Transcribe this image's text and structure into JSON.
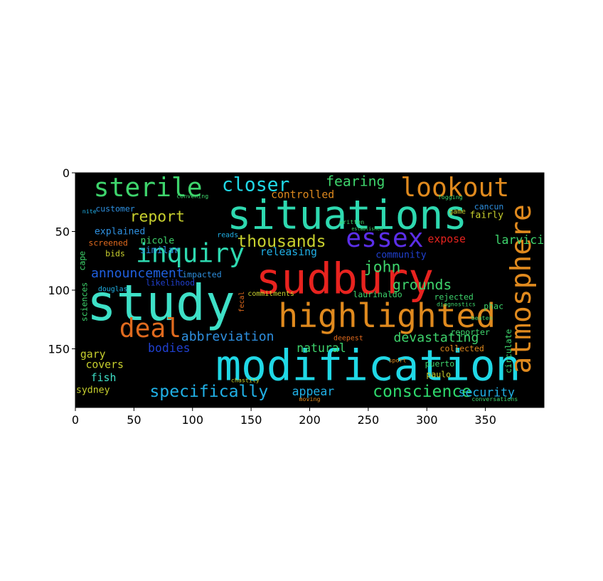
{
  "chart_data": {
    "type": "image",
    "content": "word cloud",
    "background": "#000000",
    "xlim": [
      0,
      400
    ],
    "ylim": [
      200,
      0
    ],
    "x_ticks": [
      "0",
      "50",
      "100",
      "150",
      "200",
      "250",
      "300",
      "350"
    ],
    "y_ticks": [
      "0",
      "50",
      "100",
      "150"
    ],
    "words": [
      {
        "text": "sudbury",
        "x": 230,
        "y": 93,
        "size": 36,
        "color": "#e8231f",
        "rotate": 0
      },
      {
        "text": "situations",
        "x": 232,
        "y": 38,
        "size": 34,
        "color": "#2ed9b0",
        "rotate": 0
      },
      {
        "text": "modification",
        "x": 250,
        "y": 167,
        "size": 36,
        "color": "#20d8e6",
        "rotate": 0
      },
      {
        "text": "study",
        "x": 73,
        "y": 114,
        "size": 42,
        "color": "#3ee0c7",
        "rotate": 0
      },
      {
        "text": "highlighted",
        "x": 266,
        "y": 124,
        "size": 28,
        "color": "#e08a1e",
        "rotate": 0
      },
      {
        "text": "atmosphere",
        "x": 382,
        "y": 99,
        "size": 24,
        "color": "#e08a1e",
        "rotate": -90
      },
      {
        "text": "inquiry",
        "x": 98,
        "y": 70,
        "size": 22,
        "color": "#2ed9b0",
        "rotate": 0
      },
      {
        "text": "sterile",
        "x": 62,
        "y": 14,
        "size": 22,
        "color": "#3ed46c",
        "rotate": 0
      },
      {
        "text": "lookout",
        "x": 324,
        "y": 14,
        "size": 22,
        "color": "#e08a1e",
        "rotate": 0
      },
      {
        "text": "essex",
        "x": 264,
        "y": 57,
        "size": 22,
        "color": "#5b2ee8",
        "rotate": 0
      },
      {
        "text": "deal",
        "x": 64,
        "y": 134,
        "size": 22,
        "color": "#e06a1e",
        "rotate": 0
      },
      {
        "text": "closer",
        "x": 154,
        "y": 11,
        "size": 16,
        "color": "#20d8e6",
        "rotate": 0
      },
      {
        "text": "thousands",
        "x": 176,
        "y": 59,
        "size": 14,
        "color": "#c8d02e",
        "rotate": 0
      },
      {
        "text": "report",
        "x": 70,
        "y": 38,
        "size": 13,
        "color": "#c8d02e",
        "rotate": 0
      },
      {
        "text": "conscience",
        "x": 296,
        "y": 187,
        "size": 14,
        "color": "#2ed96c",
        "rotate": 0
      },
      {
        "text": "specifically",
        "x": 114,
        "y": 187,
        "size": 14,
        "color": "#20b0e6",
        "rotate": 0
      },
      {
        "text": "announcement",
        "x": 53,
        "y": 86,
        "size": 11,
        "color": "#2060e0",
        "rotate": 0
      },
      {
        "text": "abbreviation",
        "x": 130,
        "y": 140,
        "size": 11,
        "color": "#2e90e0",
        "rotate": 0
      },
      {
        "text": "fearing",
        "x": 239,
        "y": 8,
        "size": 12,
        "color": "#3ed46c",
        "rotate": 0
      },
      {
        "text": "john",
        "x": 262,
        "y": 81,
        "size": 13,
        "color": "#3ed46c",
        "rotate": 0
      },
      {
        "text": "grounds",
        "x": 296,
        "y": 96,
        "size": 12,
        "color": "#3ed46c",
        "rotate": 0
      },
      {
        "text": "devastating",
        "x": 308,
        "y": 141,
        "size": 11,
        "color": "#3ed46c",
        "rotate": 0
      },
      {
        "text": "bodies",
        "x": 80,
        "y": 150,
        "size": 10,
        "color": "#2040d0",
        "rotate": 0
      },
      {
        "text": "natural",
        "x": 210,
        "y": 150,
        "size": 10,
        "color": "#3ed46c",
        "rotate": 0
      },
      {
        "text": "appear",
        "x": 203,
        "y": 187,
        "size": 10,
        "color": "#20b0e6",
        "rotate": 0
      },
      {
        "text": "security",
        "x": 351,
        "y": 188,
        "size": 10,
        "color": "#20b0e6",
        "rotate": 0
      },
      {
        "text": "expose",
        "x": 317,
        "y": 57,
        "size": 9,
        "color": "#e8231f",
        "rotate": 0
      },
      {
        "text": "controlled",
        "x": 194,
        "y": 19,
        "size": 9,
        "color": "#e08a1e",
        "rotate": 0
      },
      {
        "text": "releasing",
        "x": 182,
        "y": 68,
        "size": 9,
        "color": "#20b0e6",
        "rotate": 0
      },
      {
        "text": "community",
        "x": 278,
        "y": 70,
        "size": 8,
        "color": "#2040d0",
        "rotate": 0
      },
      {
        "text": "explained",
        "x": 38,
        "y": 50,
        "size": 8,
        "color": "#2e90e0",
        "rotate": 0
      },
      {
        "text": "nicole",
        "x": 70,
        "y": 58,
        "size": 8,
        "color": "#3ed46c",
        "rotate": 0
      },
      {
        "text": "similar",
        "x": 72,
        "y": 66,
        "size": 8,
        "color": "#2e90e0",
        "rotate": 0
      },
      {
        "text": "customer",
        "x": 34,
        "y": 31,
        "size": 7,
        "color": "#2e90e0",
        "rotate": 0
      },
      {
        "text": "screened",
        "x": 28,
        "y": 60,
        "size": 7,
        "color": "#e06a1e",
        "rotate": 0
      },
      {
        "text": "bids",
        "x": 34,
        "y": 69,
        "size": 7,
        "color": "#c8d02e",
        "rotate": 0
      },
      {
        "text": "likelihood",
        "x": 81,
        "y": 94,
        "size": 7,
        "color": "#2040d0",
        "rotate": 0
      },
      {
        "text": "impacted",
        "x": 108,
        "y": 87,
        "size": 7,
        "color": "#2e90e0",
        "rotate": 0
      },
      {
        "text": "douglas",
        "x": 32,
        "y": 99,
        "size": 6,
        "color": "#20b0e6",
        "rotate": 0
      },
      {
        "text": "gary",
        "x": 15,
        "y": 155,
        "size": 9,
        "color": "#c8d02e",
        "rotate": 0
      },
      {
        "text": "covers",
        "x": 25,
        "y": 164,
        "size": 9,
        "color": "#c8d02e",
        "rotate": 0
      },
      {
        "text": "fish",
        "x": 24,
        "y": 175,
        "size": 9,
        "color": "#3ee0c7",
        "rotate": 0
      },
      {
        "text": "sydney",
        "x": 15,
        "y": 185,
        "size": 8,
        "color": "#c8d02e",
        "rotate": 0
      },
      {
        "text": "sciences",
        "x": 8,
        "y": 110,
        "size": 7,
        "color": "#3ed46c",
        "rotate": -90
      },
      {
        "text": "cape",
        "x": 6,
        "y": 75,
        "size": 7,
        "color": "#3ed46c",
        "rotate": -90
      },
      {
        "text": "larvicid",
        "x": 382,
        "y": 58,
        "size": 10,
        "color": "#3ed46c",
        "rotate": 0
      },
      {
        "text": "rejected",
        "x": 323,
        "y": 106,
        "size": 7,
        "color": "#3ed46c",
        "rotate": 0
      },
      {
        "text": "fairly",
        "x": 351,
        "y": 36,
        "size": 8,
        "color": "#c8d02e",
        "rotate": 0
      },
      {
        "text": "cancun",
        "x": 353,
        "y": 29,
        "size": 7,
        "color": "#2e90e0",
        "rotate": 0
      },
      {
        "text": "reporter",
        "x": 337,
        "y": 136,
        "size": 7,
        "color": "#3ed46c",
        "rotate": 0
      },
      {
        "text": "collected",
        "x": 330,
        "y": 150,
        "size": 7,
        "color": "#e08a1e",
        "rotate": 0
      },
      {
        "text": "puerto",
        "x": 311,
        "y": 163,
        "size": 7,
        "color": "#3ed46c",
        "rotate": 0
      },
      {
        "text": "paulo",
        "x": 310,
        "y": 172,
        "size": 7,
        "color": "#c8d02e",
        "rotate": 0
      },
      {
        "text": "phac",
        "x": 357,
        "y": 114,
        "size": 7,
        "color": "#3ed46c",
        "rotate": 0
      },
      {
        "text": "circulate",
        "x": 370,
        "y": 152,
        "size": 7,
        "color": "#3ed46c",
        "rotate": -90
      },
      {
        "text": "laurinaldo",
        "x": 258,
        "y": 104,
        "size": 7,
        "color": "#3ed46c",
        "rotate": 0
      },
      {
        "text": "commitments",
        "x": 167,
        "y": 103,
        "size": 6,
        "color": "#c8d02e",
        "rotate": 0
      },
      {
        "text": "deepest",
        "x": 233,
        "y": 141,
        "size": 6,
        "color": "#e06a1e",
        "rotate": 0
      },
      {
        "text": "fecal",
        "x": 142,
        "y": 110,
        "size": 6,
        "color": "#e06a1e",
        "rotate": -90
      },
      {
        "text": "reads",
        "x": 130,
        "y": 53,
        "size": 6,
        "color": "#20b0e6",
        "rotate": 0
      },
      {
        "text": "chastity",
        "x": 145,
        "y": 177,
        "size": 5,
        "color": "#c8d02e",
        "rotate": 0
      },
      {
        "text": "game",
        "x": 326,
        "y": 33,
        "size": 6,
        "color": "#c8d02e",
        "rotate": 0
      },
      {
        "text": "nite",
        "x": 12,
        "y": 33,
        "size": 5,
        "color": "#20b0e6",
        "rotate": 0
      },
      {
        "text": "convening",
        "x": 100,
        "y": 20,
        "size": 5,
        "color": "#3ed46c",
        "rotate": 0
      },
      {
        "text": "fogging",
        "x": 320,
        "y": 21,
        "size": 5,
        "color": "#3ed46c",
        "rotate": 0
      },
      {
        "text": "diagnostics",
        "x": 325,
        "y": 112,
        "size": 5,
        "color": "#3ed46c",
        "rotate": 0
      },
      {
        "text": "sport",
        "x": 275,
        "y": 160,
        "size": 5,
        "color": "#e08a1e",
        "rotate": 0
      },
      {
        "text": "moving",
        "x": 200,
        "y": 193,
        "size": 5,
        "color": "#e08a1e",
        "rotate": 0
      },
      {
        "text": "written",
        "x": 236,
        "y": 42,
        "size": 5,
        "color": "#3ed46c",
        "rotate": 0
      },
      {
        "text": "beaten",
        "x": 347,
        "y": 124,
        "size": 5,
        "color": "#3ed46c",
        "rotate": 0
      },
      {
        "text": "conversations",
        "x": 358,
        "y": 193,
        "size": 5,
        "color": "#3ed46c",
        "rotate": 0
      },
      {
        "text": "established",
        "x": 249,
        "y": 48,
        "size": 4,
        "color": "#3ed46c",
        "rotate": 0
      }
    ]
  }
}
